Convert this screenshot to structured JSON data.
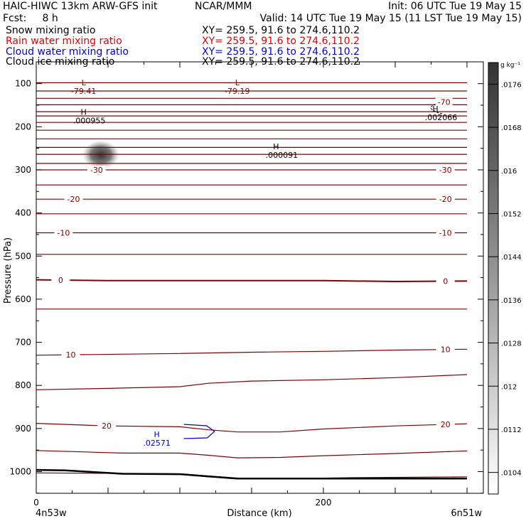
{
  "header": {
    "line1_left": "HAIC-HIWC 13km ARW-GFS init",
    "line1_center": "NCAR/MMM",
    "line1_right": "Init: 06 UTC Tue 19 May 15",
    "line2_left": "Fcst:     8 h",
    "line2_right": "Valid: 14 UTC Tue 19 May 15 (11 LST Tue 19 May 15)"
  },
  "fields": [
    {
      "label": "Snow mixing ratio",
      "xy": "XY= 259.5, 91.6 to 274.6,110.2",
      "color": "#000000"
    },
    {
      "label": "Rain water mixing ratio",
      "xy": "XY= 259.5, 91.6 to 274.6,110.2",
      "color": "#e00000"
    },
    {
      "label": "Cloud water mixing ratio",
      "xy": "XY= 259.5, 91.6 to 274.6,110.2",
      "color": "#0000e0"
    },
    {
      "label": "Cloud ice mixing ratio",
      "xy": "XY= 259.5, 91.6 to 274.6,110.2",
      "color": "#000000"
    }
  ],
  "colors": {
    "temperature": "#800000",
    "cloud_water": "#0000cc",
    "ground": "#000000"
  },
  "chart_data": {
    "type": "cross-section",
    "xlabel": "Distance (km)",
    "ylabel": "Pressure (hPa)",
    "xlim": [
      0,
      300
    ],
    "ylim": [
      1050,
      50
    ],
    "x_ticks": [
      0,
      200
    ],
    "y_ticks": [
      100,
      200,
      300,
      400,
      500,
      600,
      700,
      800,
      900,
      1000
    ],
    "x_endpoints": {
      "left": "4n53w",
      "right": "6n51w"
    },
    "colorbar": {
      "unit": "g kg⁻¹",
      "ticks": [
        ".0104",
        ".0112",
        ".012",
        ".0128",
        ".0136",
        ".0144",
        ".0152",
        ".016",
        ".0168",
        ".0176"
      ],
      "range": [
        0.01,
        0.018
      ]
    },
    "temperature_contours": [
      {
        "x": [
          0,
          300
        ],
        "p": [
          98,
          98
        ]
      },
      {
        "x": [
          0,
          300
        ],
        "p": [
          117,
          117
        ]
      },
      {
        "x": [
          0,
          300
        ],
        "p": [
          134,
          134
        ]
      },
      {
        "x": [
          0,
          300
        ],
        "p": [
          149,
          149
        ]
      },
      {
        "x": [
          0,
          300
        ],
        "p": [
          165,
          165
        ]
      },
      {
        "x": [
          0,
          300
        ],
        "p": [
          175,
          175
        ]
      },
      {
        "x": [
          0,
          300
        ],
        "p": [
          190,
          190
        ]
      },
      {
        "x": [
          0,
          300
        ],
        "p": [
          208,
          208
        ]
      },
      {
        "x": [
          0,
          300
        ],
        "p": [
          228,
          228
        ]
      },
      {
        "x": [
          0,
          300
        ],
        "p": [
          248,
          248
        ]
      },
      {
        "x": [
          0,
          300
        ],
        "p": [
          264,
          264
        ]
      },
      {
        "x": [
          0,
          300
        ],
        "p": [
          285,
          285
        ]
      },
      {
        "x": [
          0,
          300
        ],
        "p": [
          300,
          300
        ],
        "label": "-30",
        "label_x": [
          42,
          285
        ]
      },
      {
        "x": [
          0,
          300
        ],
        "p": [
          335,
          335
        ]
      },
      {
        "x": [
          0,
          300
        ],
        "p": [
          368,
          368
        ],
        "label": "-20",
        "label_x": [
          26,
          285
        ]
      },
      {
        "x": [
          0,
          300
        ],
        "p": [
          402,
          402
        ]
      },
      {
        "x": [
          0,
          300
        ],
        "p": [
          446,
          446
        ],
        "label": "-10",
        "label_x": [
          19,
          285
        ]
      },
      {
        "x": [
          0,
          300
        ],
        "p": [
          496,
          496
        ]
      },
      {
        "x": [
          0,
          50,
          100,
          150,
          200,
          250,
          300
        ],
        "p": [
          555,
          557,
          557,
          557,
          557,
          559,
          558
        ],
        "label": "0",
        "label_x": [
          17,
          285
        ]
      },
      {
        "x": [
          0,
          300
        ],
        "p": [
          623,
          623
        ]
      },
      {
        "x": [
          0,
          100,
          150,
          200,
          250,
          300
        ],
        "p": [
          730,
          726,
          723,
          721,
          718,
          716
        ],
        "label": "10",
        "label_x": [
          24,
          285
        ]
      },
      {
        "x": [
          0,
          50,
          100,
          120,
          150,
          200,
          250,
          300
        ],
        "p": [
          810,
          807,
          803,
          795,
          790,
          787,
          782,
          775
        ]
      },
      {
        "x": [
          0,
          50,
          100,
          120,
          140,
          170,
          200,
          250,
          300
        ],
        "p": [
          888,
          894,
          896,
          903,
          908,
          908,
          901,
          894,
          889
        ],
        "label": "20",
        "label_x": [
          49,
          285
        ]
      },
      {
        "x": [
          0,
          60,
          100,
          120,
          140,
          170,
          200,
          250,
          300
        ],
        "p": [
          951,
          957,
          957,
          962,
          968,
          967,
          963,
          958,
          952
        ]
      },
      {
        "x": [
          0,
          100,
          120,
          140,
          180,
          220,
          300
        ],
        "p": [
          1003,
          1005,
          1010,
          1015,
          1016,
          1014,
          1012
        ]
      }
    ],
    "ground": {
      "x": [
        0,
        20,
        60,
        100,
        120,
        140,
        200,
        300
      ],
      "p": [
        996,
        997,
        1005,
        1006,
        1011,
        1016,
        1016,
        1016
      ]
    },
    "extrema": [
      {
        "type": "L",
        "value": "-79.41",
        "x": 33,
        "p": 104,
        "color": "#800000"
      },
      {
        "type": "L",
        "value": "-79.19",
        "x": 140,
        "p": 104,
        "color": "#800000"
      },
      {
        "type": "H",
        "value": ".000955",
        "x": 33,
        "p": 172,
        "color": "#000000"
      },
      {
        "type": "H",
        "value": ".000091",
        "x": 167,
        "p": 252,
        "color": "#000000"
      },
      {
        "type": "H",
        "value": ".002066",
        "x": 278,
        "p": 165,
        "color": "#000000"
      },
      {
        "type": "H",
        "value": ".02571",
        "x": 84,
        "p": 920,
        "color": "#0000cc"
      }
    ],
    "contour_labels": [
      {
        "text": "-70",
        "x": 284,
        "p": 143
      },
      {
        "text": "-79.41",
        "x": 33,
        "p": 104
      }
    ],
    "snow_maximum": {
      "x": 45,
      "p": 265,
      "value": 0.0176
    }
  }
}
